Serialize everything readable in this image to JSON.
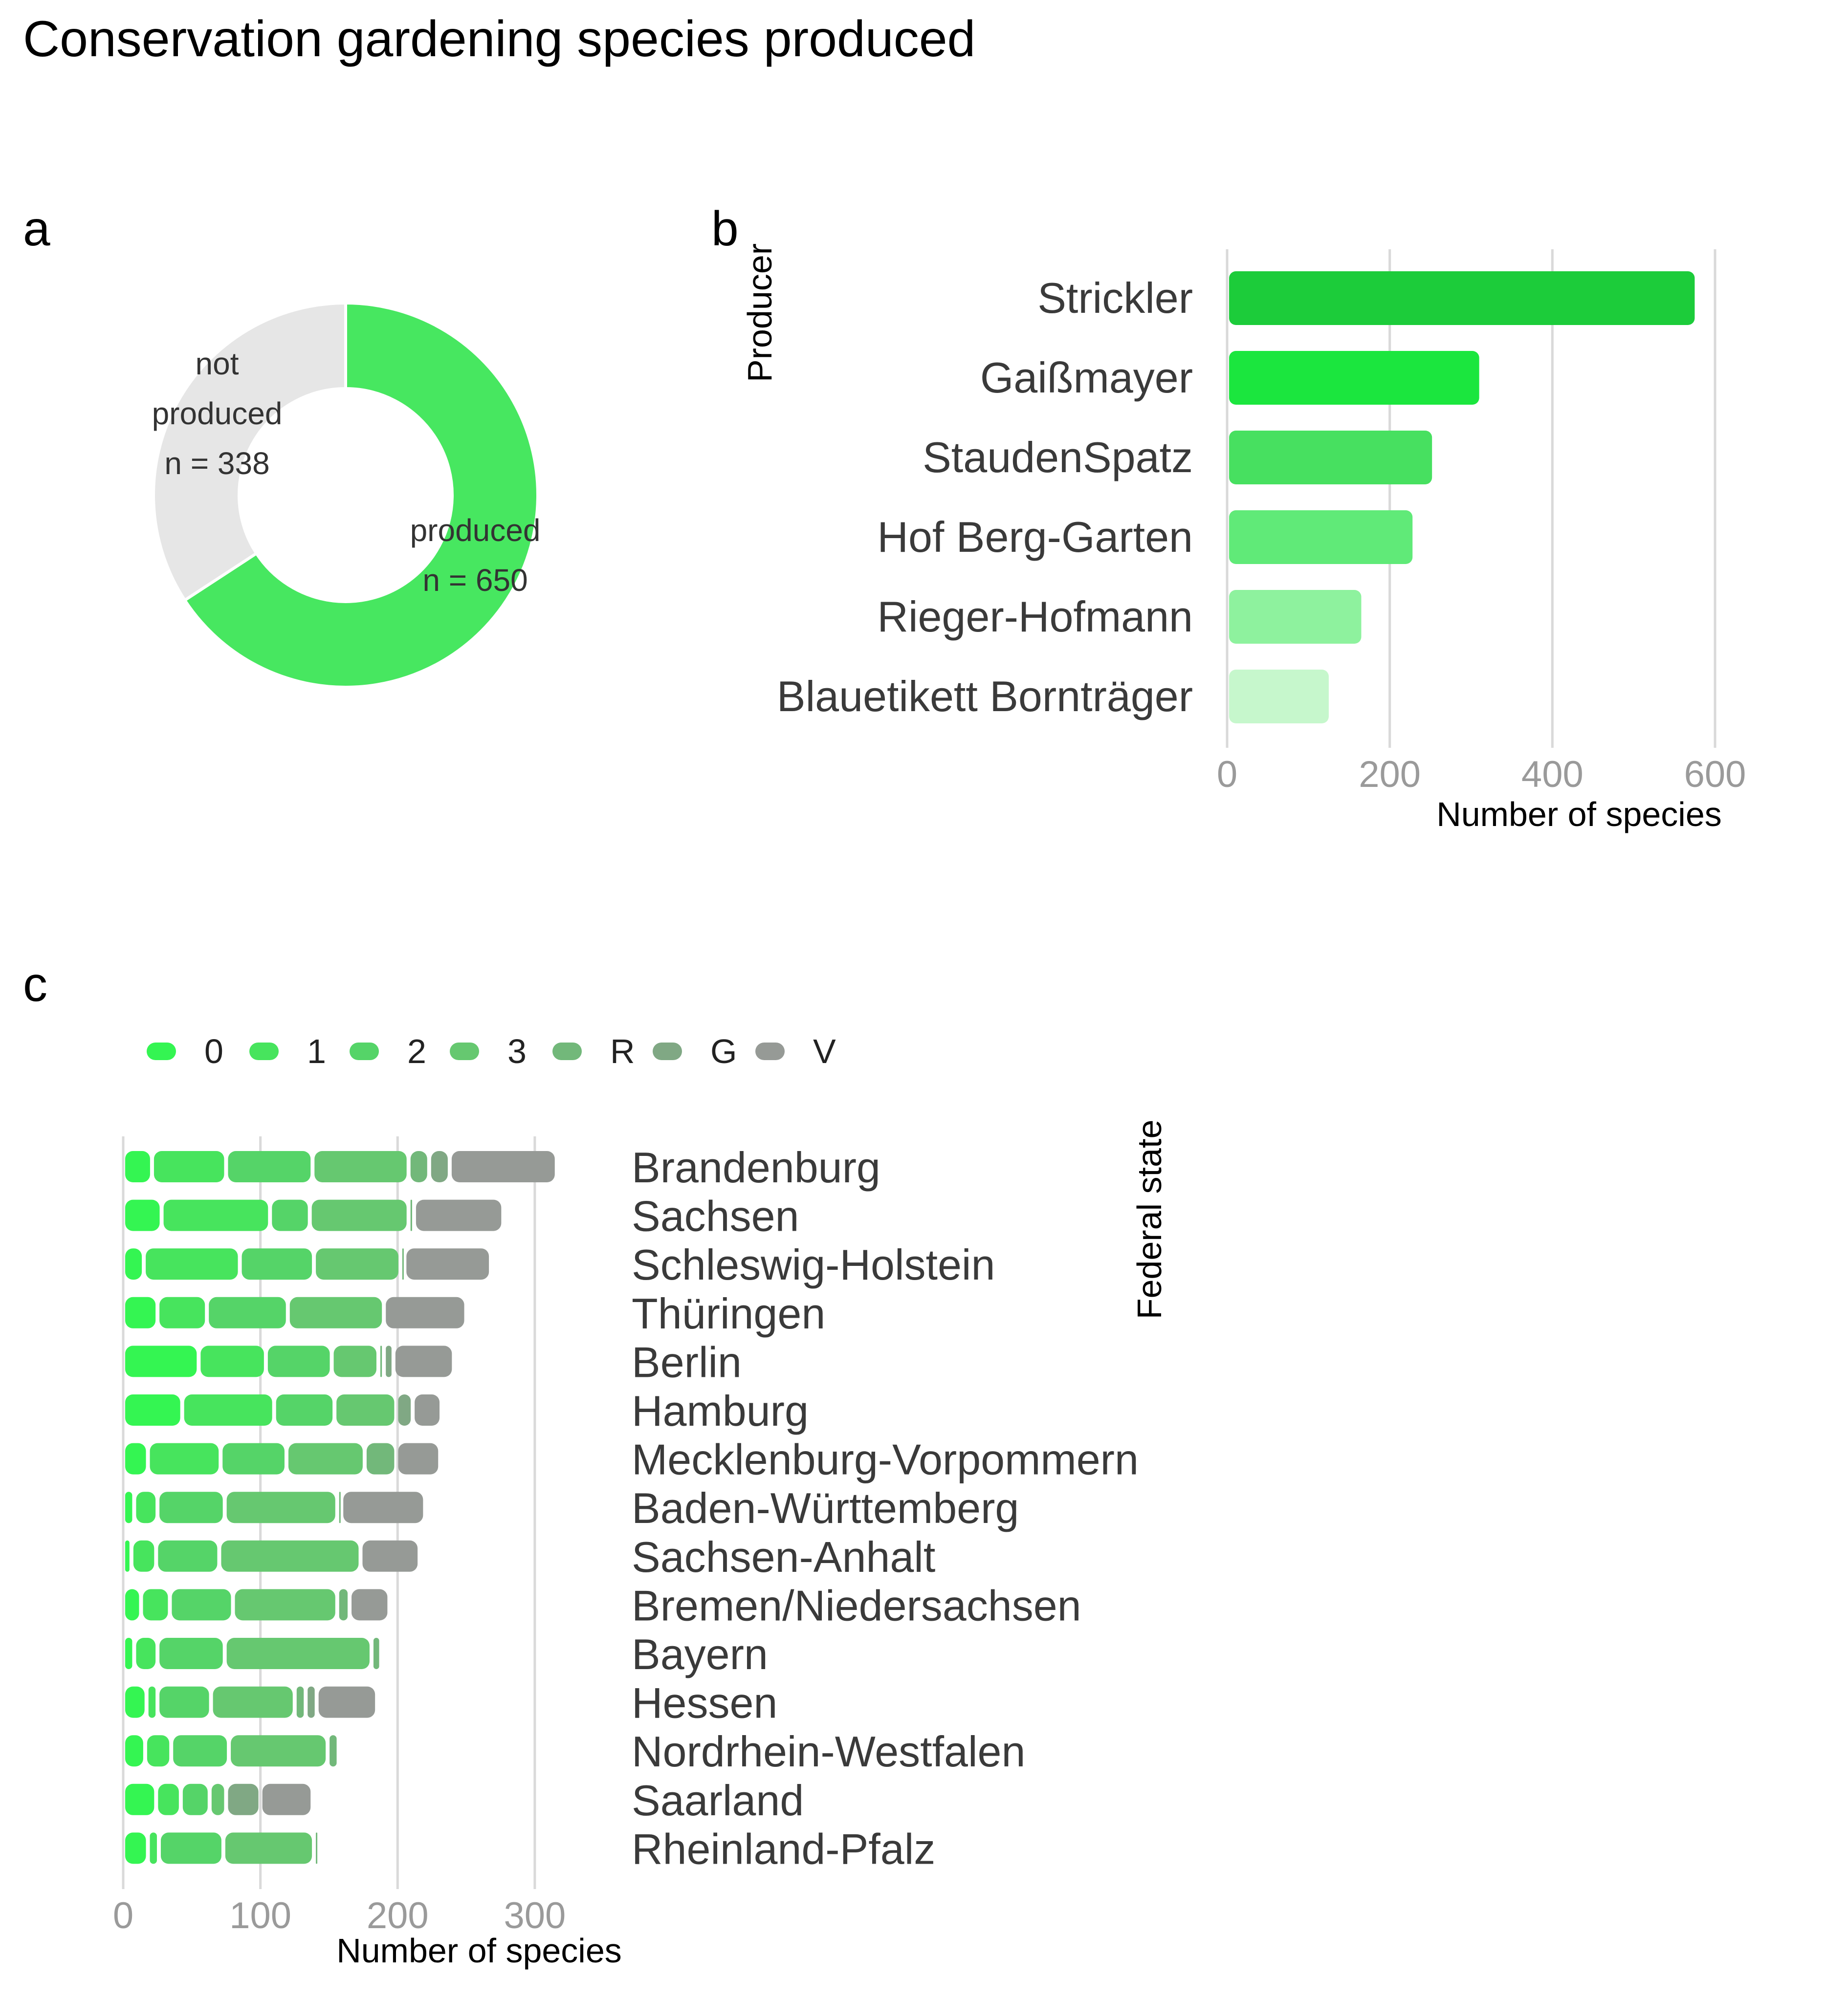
{
  "title": "Conservation gardening species produced",
  "chart_data": [
    {
      "panel": "a",
      "type": "pie",
      "donut": true,
      "slices": [
        {
          "label_lines": [
            "produced",
            "n = 650"
          ],
          "value": 650,
          "color": "#47e760"
        },
        {
          "label_lines": [
            "not",
            "produced",
            "n = 338"
          ],
          "value": 338,
          "color": "#e6e6e6"
        }
      ]
    },
    {
      "panel": "b",
      "type": "bar",
      "orientation": "horizontal",
      "ylabel": "Producer",
      "xlabel": "Number of species",
      "xlim": [
        0,
        600
      ],
      "xticks": [
        0,
        200,
        400,
        600
      ],
      "grid": true,
      "categories": [
        "Strickler",
        "Gaißmayer",
        "StaudenSpatz",
        "Hof Berg-Garten",
        "Rieger-Hofmann",
        "Blauetikett Bornträger"
      ],
      "values": [
        575,
        310,
        252,
        228,
        165,
        125
      ],
      "colors": [
        "#1ccc3a",
        "#1be63e",
        "#47e060",
        "#60ea78",
        "#8ef29e",
        "#c6f7cc"
      ]
    },
    {
      "panel": "c",
      "type": "bar",
      "stacked": true,
      "orientation": "horizontal",
      "xlabel": "Number of species",
      "ylabel": "Federal state",
      "xlim": [
        0,
        320
      ],
      "xticks": [
        0,
        100,
        200,
        300
      ],
      "grid": true,
      "legend_position": "top",
      "legend": [
        {
          "name": "0",
          "color": "#34f552"
        },
        {
          "name": "1",
          "color": "#47e45d"
        },
        {
          "name": "2",
          "color": "#55d468"
        },
        {
          "name": "3",
          "color": "#66c870"
        },
        {
          "name": "R",
          "color": "#72b87a"
        },
        {
          "name": "G",
          "color": "#80a884"
        },
        {
          "name": "V",
          "color": "#969a96"
        }
      ],
      "categories": [
        "Brandenburg",
        "Sachsen",
        "Schleswig-Holstein",
        "Thüringen",
        "Berlin",
        "Hamburg",
        "Mecklenburg-Vorpommern",
        "Baden-Württemberg",
        "Sachsen-Anhalt",
        "Bremen/Niedersachsen",
        "Bayern",
        "Hessen",
        "Nordrhein-Westfalen",
        "Saarland",
        "Rheinland-Pfalz"
      ],
      "series": [
        {
          "name": "0",
          "values": [
            21,
            28,
            15,
            25,
            55,
            43,
            18,
            8,
            6,
            13,
            8,
            17,
            16,
            24,
            18
          ]
        },
        {
          "name": "1",
          "values": [
            54,
            79,
            70,
            36,
            49,
            67,
            53,
            17,
            18,
            21,
            17,
            8,
            19,
            18,
            8
          ]
        },
        {
          "name": "2",
          "values": [
            63,
            29,
            54,
            59,
            48,
            44,
            48,
            49,
            46,
            46,
            49,
            39,
            42,
            21,
            47
          ]
        },
        {
          "name": "3",
          "values": [
            70,
            72,
            63,
            70,
            34,
            45,
            57,
            82,
            103,
            76,
            107,
            61,
            72,
            12,
            66
          ]
        },
        {
          "name": "R",
          "values": [
            15,
            4,
            3,
            0,
            4,
            0,
            23,
            3,
            0,
            9,
            7,
            8,
            8,
            0,
            2
          ]
        },
        {
          "name": "G",
          "values": [
            15,
            0,
            0,
            0,
            7,
            12,
            0,
            0,
            0,
            0,
            0,
            8,
            0,
            25,
            0
          ]
        },
        {
          "name": "V",
          "values": [
            78,
            65,
            63,
            60,
            44,
            21,
            32,
            61,
            43,
            29,
            0,
            44,
            0,
            38,
            0
          ]
        }
      ]
    }
  ]
}
